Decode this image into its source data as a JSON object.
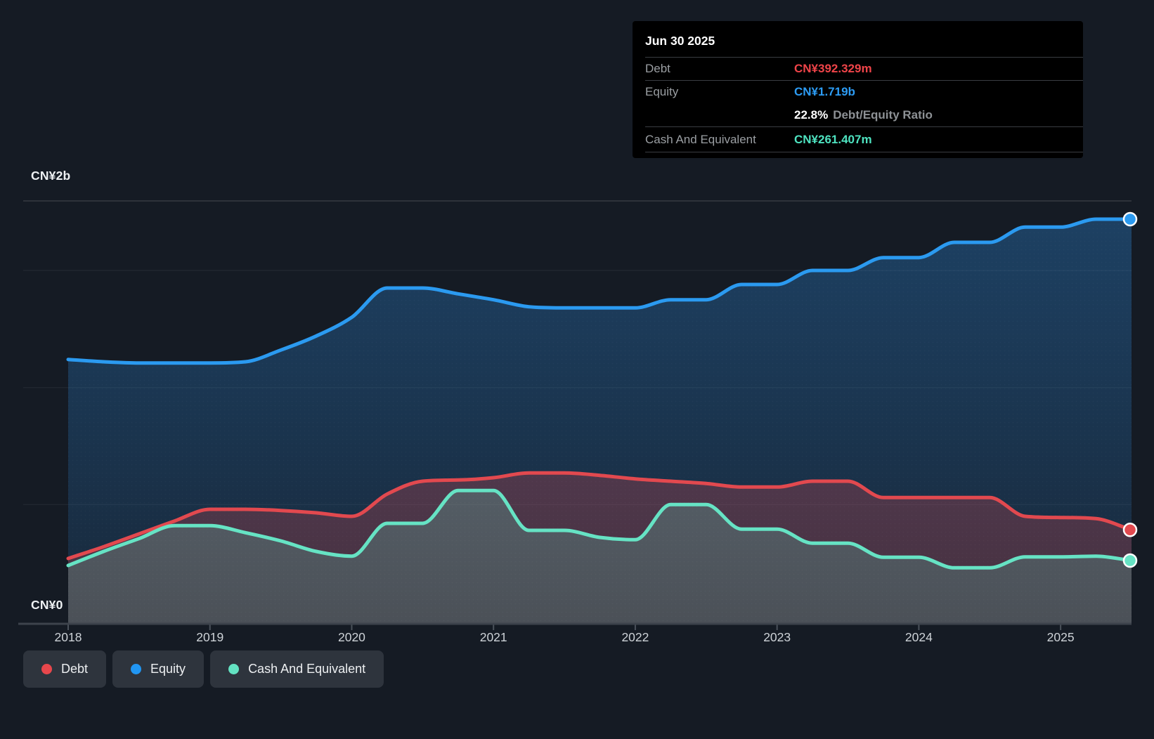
{
  "page": {
    "background": "#151b24"
  },
  "colors": {
    "debt": "#ef4449",
    "equity": "#2d9cf4",
    "cash": "#4ee3c0",
    "grid": "rgba(255,255,255,0.07)",
    "plot_top_border": "rgba(255,255,255,0.14)",
    "axis_line": "#3d434c"
  },
  "y_axis": {
    "top_label": "CN¥2b",
    "bottom_label": "CN¥0"
  },
  "x_axis": {
    "labels": [
      "2018",
      "2019",
      "2020",
      "2021",
      "2022",
      "2023",
      "2024",
      "2025"
    ]
  },
  "tooltip": {
    "title": "Jun 30 2025",
    "debt_label": "Debt",
    "debt_value": "CN¥392.329m",
    "equity_label": "Equity",
    "equity_value": "CN¥1.719b",
    "ratio_value": "22.8%",
    "ratio_label": "Debt/Equity Ratio",
    "cash_label": "Cash And Equivalent",
    "cash_value": "CN¥261.407m"
  },
  "legend": {
    "items": [
      {
        "label": "Debt",
        "color": "#e8474c"
      },
      {
        "label": "Equity",
        "color": "#2196f3"
      },
      {
        "label": "Cash And Equivalent",
        "color": "#63e2c2"
      }
    ]
  },
  "chart_data": {
    "type": "area",
    "unit": "CN¥ billions",
    "x_range": [
      2018,
      2025.5
    ],
    "ylim": [
      0,
      2
    ],
    "y_gridline_values": [
      0.5,
      1.0,
      1.5
    ],
    "grid": true,
    "legend_position": "bottom-left",
    "x": [
      2018.0,
      2018.25,
      2018.5,
      2018.75,
      2019.0,
      2019.25,
      2019.5,
      2019.75,
      2020.0,
      2020.25,
      2020.5,
      2020.75,
      2021.0,
      2021.25,
      2021.5,
      2021.75,
      2022.0,
      2022.25,
      2022.5,
      2022.75,
      2023.0,
      2023.25,
      2023.5,
      2023.75,
      2024.0,
      2024.25,
      2024.5,
      2024.75,
      2025.0,
      2025.25,
      2025.5
    ],
    "series": [
      {
        "name": "Equity",
        "color": "#2b9af0",
        "fill_top": "rgba(45,140,225,0.34)",
        "fill_bottom": "rgba(45,140,225,0.12)",
        "values": [
          1.12,
          1.11,
          1.105,
          1.105,
          1.105,
          1.11,
          1.16,
          1.22,
          1.3,
          1.425,
          1.425,
          1.4,
          1.375,
          1.345,
          1.34,
          1.34,
          1.34,
          1.375,
          1.375,
          1.44,
          1.44,
          1.5,
          1.5,
          1.555,
          1.555,
          1.62,
          1.62,
          1.685,
          1.685,
          1.719,
          1.719
        ]
      },
      {
        "name": "Debt",
        "color": "#e2494f",
        "fill_top": "rgba(229,73,79,0.34)",
        "fill_bottom": "rgba(229,73,79,0.22)",
        "values": [
          0.27,
          0.32,
          0.375,
          0.43,
          0.48,
          0.48,
          0.475,
          0.465,
          0.45,
          0.545,
          0.6,
          0.605,
          0.615,
          0.635,
          0.635,
          0.625,
          0.61,
          0.6,
          0.59,
          0.575,
          0.575,
          0.6,
          0.6,
          0.53,
          0.53,
          0.53,
          0.53,
          0.45,
          0.445,
          0.44,
          0.392
        ]
      },
      {
        "name": "Cash And Equivalent",
        "color": "#66e3c4",
        "fill_top": "rgba(103,228,196,0.30)",
        "fill_bottom": "rgba(103,228,196,0.18)",
        "values": [
          0.24,
          0.3,
          0.355,
          0.41,
          0.41,
          0.38,
          0.345,
          0.3,
          0.28,
          0.42,
          0.42,
          0.56,
          0.56,
          0.39,
          0.39,
          0.36,
          0.35,
          0.5,
          0.5,
          0.395,
          0.395,
          0.335,
          0.335,
          0.275,
          0.275,
          0.23,
          0.23,
          0.277,
          0.277,
          0.28,
          0.261
        ]
      }
    ],
    "end_values": {
      "Equity": "CN¥1.719b",
      "Debt": "CN¥392.329m",
      "Cash And Equivalent": "CN¥261.407m"
    }
  }
}
